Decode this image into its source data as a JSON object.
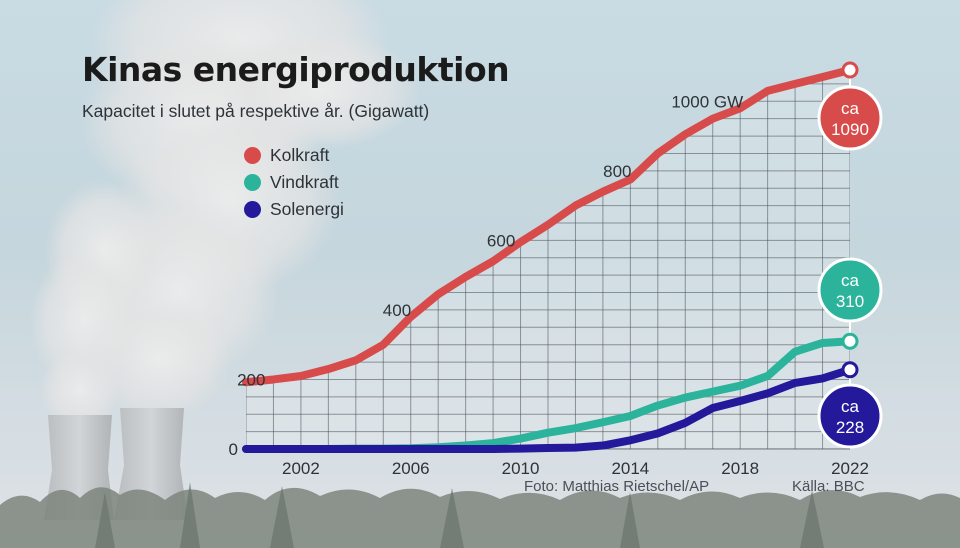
{
  "chart_data": {
    "type": "line",
    "title": "Kinas energiproduktion",
    "subtitle": "Kapacitet i slutet på respektive år. (Gigawatt)",
    "x": [
      2000,
      2001,
      2002,
      2003,
      2004,
      2005,
      2006,
      2007,
      2008,
      2009,
      2010,
      2011,
      2012,
      2013,
      2014,
      2015,
      2016,
      2017,
      2018,
      2019,
      2020,
      2021,
      2022
    ],
    "x_ticks": [
      2002,
      2006,
      2010,
      2014,
      2018,
      2022
    ],
    "x_tick_labels": [
      "2002",
      "2006",
      "2010",
      "2014",
      "2018",
      "2022"
    ],
    "y_ticks": [
      0,
      200,
      400,
      600,
      800,
      1000
    ],
    "y_tick_labels": [
      "0",
      "200",
      "400",
      "600",
      "800",
      "1000 GW"
    ],
    "ylim": [
      0,
      1090
    ],
    "xlim": [
      2000,
      2022
    ],
    "grid": true,
    "series": [
      {
        "name": "Kolkraft",
        "color": "#d84b4b",
        "values": [
          192,
          200,
          210,
          230,
          255,
          300,
          380,
          445,
          495,
          540,
          595,
          645,
          700,
          740,
          775,
          850,
          905,
          950,
          980,
          1030,
          1050,
          1070,
          1090
        ],
        "callout": [
          "ca",
          "1090"
        ]
      },
      {
        "name": "Vindkraft",
        "color": "#2bb39c",
        "values": [
          0,
          0,
          0,
          0,
          1,
          1,
          2,
          5,
          10,
          17,
          30,
          47,
          60,
          77,
          95,
          125,
          148,
          165,
          182,
          210,
          280,
          305,
          310
        ],
        "callout": [
          "ca",
          "310"
        ]
      },
      {
        "name": "Solenergi",
        "color": "#23199a",
        "values": [
          0,
          0,
          0,
          0,
          0,
          0,
          0,
          0,
          0,
          0,
          1,
          3,
          4,
          10,
          25,
          45,
          75,
          118,
          138,
          160,
          190,
          203,
          228
        ],
        "callout": [
          "ca",
          "228"
        ]
      }
    ]
  },
  "credits": {
    "photo": "Foto:  Matthias Rietschel/AP",
    "source": "Källa: BBC"
  }
}
